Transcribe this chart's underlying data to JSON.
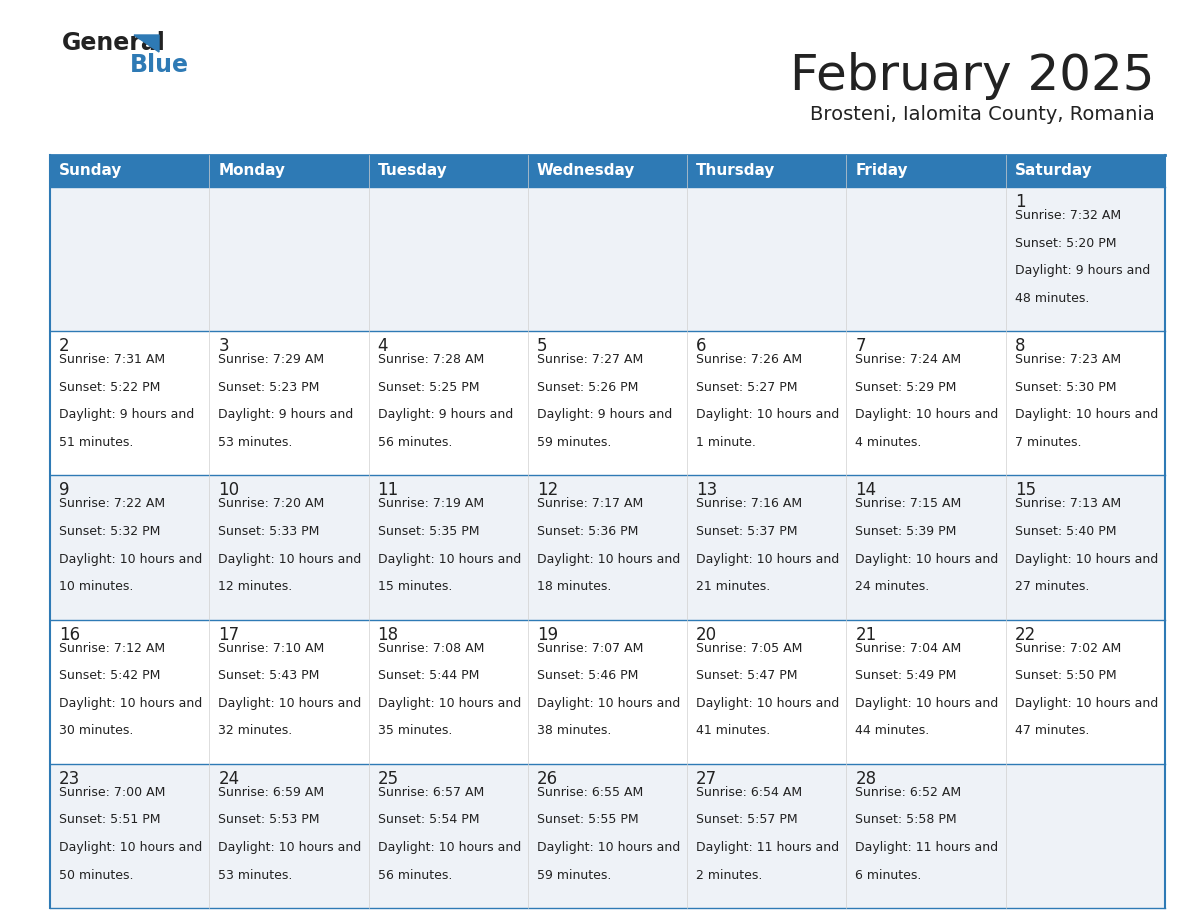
{
  "title": "February 2025",
  "subtitle": "Brosteni, Ialomita County, Romania",
  "header_bg": "#2e7ab5",
  "header_text": "#ffffff",
  "row_bg_light": "#eef2f7",
  "row_bg_white": "#ffffff",
  "cell_border_color": "#2e7ab5",
  "cell_border_thin": "#cccccc",
  "day_headers": [
    "Sunday",
    "Monday",
    "Tuesday",
    "Wednesday",
    "Thursday",
    "Friday",
    "Saturday"
  ],
  "days": [
    {
      "day": 1,
      "col": 6,
      "row": 0,
      "sunrise": "7:32 AM",
      "sunset": "5:20 PM",
      "daylight": "9 hours and 48 minutes"
    },
    {
      "day": 2,
      "col": 0,
      "row": 1,
      "sunrise": "7:31 AM",
      "sunset": "5:22 PM",
      "daylight": "9 hours and 51 minutes"
    },
    {
      "day": 3,
      "col": 1,
      "row": 1,
      "sunrise": "7:29 AM",
      "sunset": "5:23 PM",
      "daylight": "9 hours and 53 minutes"
    },
    {
      "day": 4,
      "col": 2,
      "row": 1,
      "sunrise": "7:28 AM",
      "sunset": "5:25 PM",
      "daylight": "9 hours and 56 minutes"
    },
    {
      "day": 5,
      "col": 3,
      "row": 1,
      "sunrise": "7:27 AM",
      "sunset": "5:26 PM",
      "daylight": "9 hours and 59 minutes"
    },
    {
      "day": 6,
      "col": 4,
      "row": 1,
      "sunrise": "7:26 AM",
      "sunset": "5:27 PM",
      "daylight": "10 hours and 1 minute"
    },
    {
      "day": 7,
      "col": 5,
      "row": 1,
      "sunrise": "7:24 AM",
      "sunset": "5:29 PM",
      "daylight": "10 hours and 4 minutes"
    },
    {
      "day": 8,
      "col": 6,
      "row": 1,
      "sunrise": "7:23 AM",
      "sunset": "5:30 PM",
      "daylight": "10 hours and 7 minutes"
    },
    {
      "day": 9,
      "col": 0,
      "row": 2,
      "sunrise": "7:22 AM",
      "sunset": "5:32 PM",
      "daylight": "10 hours and 10 minutes"
    },
    {
      "day": 10,
      "col": 1,
      "row": 2,
      "sunrise": "7:20 AM",
      "sunset": "5:33 PM",
      "daylight": "10 hours and 12 minutes"
    },
    {
      "day": 11,
      "col": 2,
      "row": 2,
      "sunrise": "7:19 AM",
      "sunset": "5:35 PM",
      "daylight": "10 hours and 15 minutes"
    },
    {
      "day": 12,
      "col": 3,
      "row": 2,
      "sunrise": "7:17 AM",
      "sunset": "5:36 PM",
      "daylight": "10 hours and 18 minutes"
    },
    {
      "day": 13,
      "col": 4,
      "row": 2,
      "sunrise": "7:16 AM",
      "sunset": "5:37 PM",
      "daylight": "10 hours and 21 minutes"
    },
    {
      "day": 14,
      "col": 5,
      "row": 2,
      "sunrise": "7:15 AM",
      "sunset": "5:39 PM",
      "daylight": "10 hours and 24 minutes"
    },
    {
      "day": 15,
      "col": 6,
      "row": 2,
      "sunrise": "7:13 AM",
      "sunset": "5:40 PM",
      "daylight": "10 hours and 27 minutes"
    },
    {
      "day": 16,
      "col": 0,
      "row": 3,
      "sunrise": "7:12 AM",
      "sunset": "5:42 PM",
      "daylight": "10 hours and 30 minutes"
    },
    {
      "day": 17,
      "col": 1,
      "row": 3,
      "sunrise": "7:10 AM",
      "sunset": "5:43 PM",
      "daylight": "10 hours and 32 minutes"
    },
    {
      "day": 18,
      "col": 2,
      "row": 3,
      "sunrise": "7:08 AM",
      "sunset": "5:44 PM",
      "daylight": "10 hours and 35 minutes"
    },
    {
      "day": 19,
      "col": 3,
      "row": 3,
      "sunrise": "7:07 AM",
      "sunset": "5:46 PM",
      "daylight": "10 hours and 38 minutes"
    },
    {
      "day": 20,
      "col": 4,
      "row": 3,
      "sunrise": "7:05 AM",
      "sunset": "5:47 PM",
      "daylight": "10 hours and 41 minutes"
    },
    {
      "day": 21,
      "col": 5,
      "row": 3,
      "sunrise": "7:04 AM",
      "sunset": "5:49 PM",
      "daylight": "10 hours and 44 minutes"
    },
    {
      "day": 22,
      "col": 6,
      "row": 3,
      "sunrise": "7:02 AM",
      "sunset": "5:50 PM",
      "daylight": "10 hours and 47 minutes"
    },
    {
      "day": 23,
      "col": 0,
      "row": 4,
      "sunrise": "7:00 AM",
      "sunset": "5:51 PM",
      "daylight": "10 hours and 50 minutes"
    },
    {
      "day": 24,
      "col": 1,
      "row": 4,
      "sunrise": "6:59 AM",
      "sunset": "5:53 PM",
      "daylight": "10 hours and 53 minutes"
    },
    {
      "day": 25,
      "col": 2,
      "row": 4,
      "sunrise": "6:57 AM",
      "sunset": "5:54 PM",
      "daylight": "10 hours and 56 minutes"
    },
    {
      "day": 26,
      "col": 3,
      "row": 4,
      "sunrise": "6:55 AM",
      "sunset": "5:55 PM",
      "daylight": "10 hours and 59 minutes"
    },
    {
      "day": 27,
      "col": 4,
      "row": 4,
      "sunrise": "6:54 AM",
      "sunset": "5:57 PM",
      "daylight": "11 hours and 2 minutes"
    },
    {
      "day": 28,
      "col": 5,
      "row": 4,
      "sunrise": "6:52 AM",
      "sunset": "5:58 PM",
      "daylight": "11 hours and 6 minutes"
    }
  ],
  "num_rows": 5,
  "num_cols": 7,
  "title_fontsize": 36,
  "subtitle_fontsize": 14,
  "header_fontsize": 11,
  "day_num_fontsize": 12,
  "cell_text_fontsize": 9,
  "title_color": "#222222",
  "subtitle_color": "#222222",
  "text_color": "#222222",
  "logo_general_color": "#222222",
  "logo_blue_color": "#2e7ab5",
  "logo_triangle_color": "#2e7ab5"
}
